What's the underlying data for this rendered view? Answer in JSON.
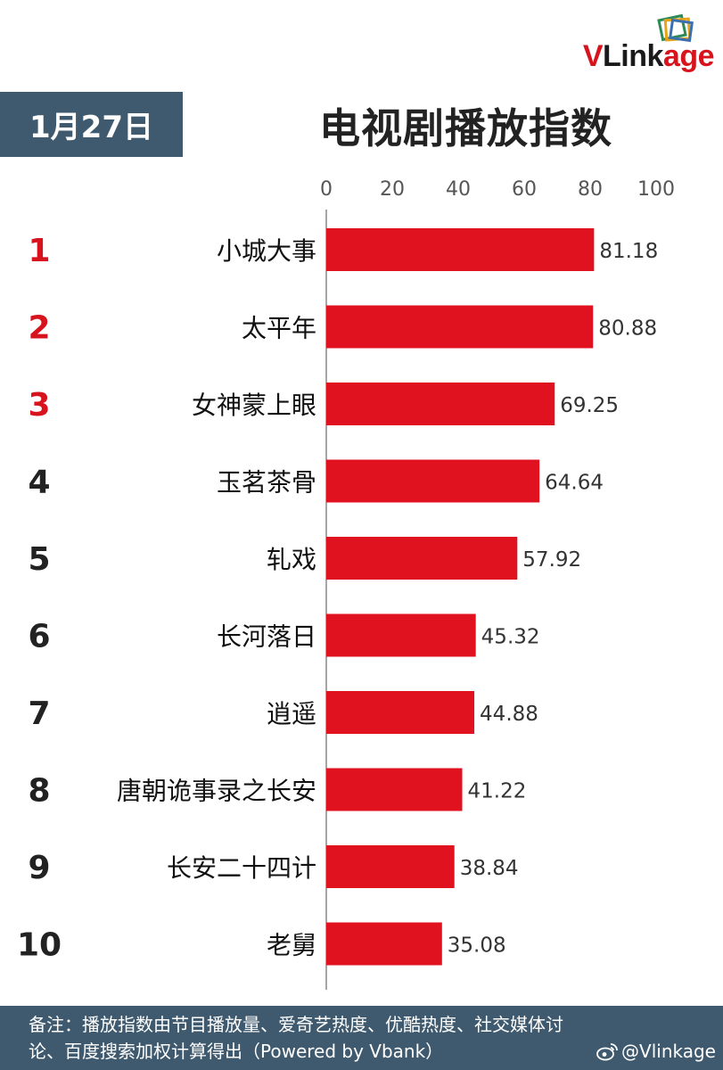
{
  "brand": {
    "logo_prefix": "V",
    "logo_middle": "Link",
    "logo_suffix": "age",
    "accent_color": "#d7141d"
  },
  "header": {
    "date": "1月27日",
    "title": "电视剧播放指数"
  },
  "chart_data": {
    "type": "bar",
    "orientation": "horizontal",
    "title": "电视剧播放指数",
    "ranks": [
      "1",
      "2",
      "3",
      "4",
      "5",
      "6",
      "7",
      "8",
      "9",
      "10"
    ],
    "categories": [
      "小城大事",
      "太平年",
      "女神蒙上眼",
      "玉茗茶骨",
      "轧戏",
      "长河落日",
      "逍遥",
      "唐朝诡事录之长安",
      "长安二十四计",
      "老舅"
    ],
    "values": [
      81.18,
      80.88,
      69.25,
      64.64,
      57.92,
      45.32,
      44.88,
      41.22,
      38.84,
      35.08
    ],
    "value_labels": [
      "81.18",
      "80.88",
      "69.25",
      "64.64",
      "57.92",
      "45.32",
      "44.88",
      "41.22",
      "38.84",
      "35.08"
    ],
    "xticks": [
      "0",
      "20",
      "40",
      "60",
      "80",
      "100"
    ],
    "xlim": [
      0,
      100
    ],
    "axis_position": "top",
    "grid": false,
    "bar_color": "#e0121f",
    "top_rank_color": "#d7141d",
    "rank_color": "#222222"
  },
  "footer": {
    "note_line1": "备注：播放指数由节目播放量、爱奇艺热度、优酷热度、社交媒体讨",
    "note_line2": "论、百度搜索加权计算得出（Powered by Vbank）",
    "handle": "@Vlinkage"
  }
}
